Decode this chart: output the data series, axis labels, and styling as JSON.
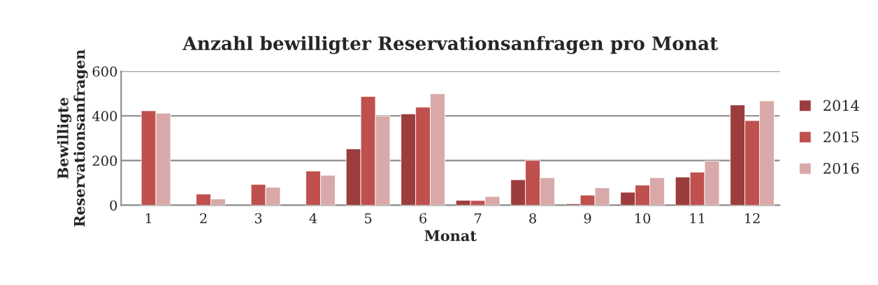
{
  "chart_data": {
    "type": "bar",
    "title": "Anzahl bewilligter Reservationsanfragen pro Monat",
    "xlabel": "Monat",
    "ylabel": "Bewilligte\nReservationsanfragen",
    "categories": [
      "1",
      "2",
      "3",
      "4",
      "5",
      "6",
      "7",
      "8",
      "9",
      "10",
      "11",
      "12"
    ],
    "series": [
      {
        "name": "2014",
        "color": "#9c3d3d",
        "values": [
          null,
          null,
          null,
          null,
          252,
          409,
          22,
          114,
          6,
          58,
          126,
          449
        ]
      },
      {
        "name": "2015",
        "color": "#c0504d",
        "values": [
          423,
          50,
          93,
          153,
          487,
          439,
          21,
          201,
          45,
          90,
          148,
          379
        ]
      },
      {
        "name": "2016",
        "color": "#d9a9a9",
        "values": [
          412,
          28,
          80,
          134,
          400,
          499,
          39,
          123,
          78,
          123,
          198,
          467
        ]
      }
    ],
    "ylim": [
      0,
      600
    ],
    "yticks": [
      0,
      200,
      400,
      600
    ],
    "grid": "y",
    "legend": "right"
  }
}
